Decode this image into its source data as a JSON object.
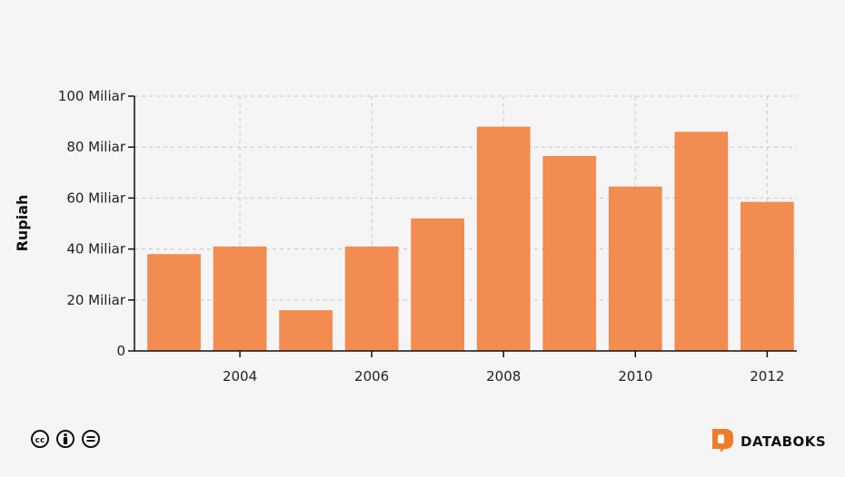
{
  "chart_data": {
    "type": "bar",
    "title": "",
    "xlabel": "",
    "ylabel": "Rupiah",
    "x": [
      2003,
      2004,
      2005,
      2006,
      2007,
      2008,
      2009,
      2010,
      2011,
      2012
    ],
    "values": [
      38,
      41,
      16,
      41,
      52,
      88,
      76.5,
      64.5,
      86,
      58.5
    ],
    "value_unit": "Miliar",
    "xlim": [
      2002.4,
      2012.45
    ],
    "ylim": [
      0,
      100
    ],
    "x_ticks": [
      2004,
      2006,
      2008,
      2010,
      2012
    ],
    "x_tick_labels": [
      "2004",
      "2006",
      "2008",
      "2010",
      "2012"
    ],
    "y_ticks": [
      0,
      20,
      40,
      60,
      80,
      100
    ],
    "y_tick_labels": [
      "0",
      "20 Miliar",
      "40 Miliar",
      "60 Miliar",
      "80 Miliar",
      "100 Miliar"
    ],
    "grid": true,
    "legend": "none",
    "bar_color": "#f28c50"
  },
  "footer": {
    "license_icons": [
      "cc-icon",
      "by-attribution-icon",
      "nd-no-derivatives-icon"
    ],
    "brand_name": "DATABOKS",
    "brand_color": "#f07c2a"
  }
}
